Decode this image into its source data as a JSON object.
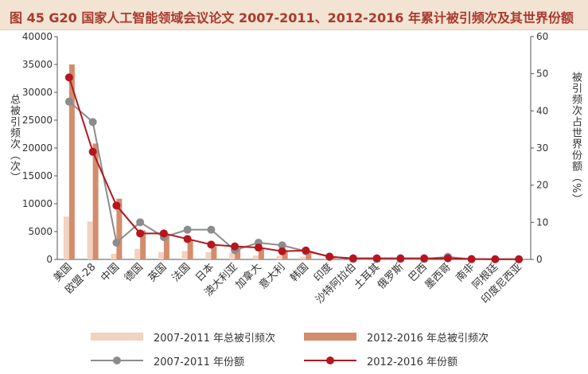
{
  "title": "图 45  G20 国家人工智能领域会议论文 2007-2011、2012-2016 年累计被引频次及其世界份额",
  "chart_data": {
    "type": "bar",
    "categories": [
      "美国",
      "欧盟-28",
      "中国",
      "德国",
      "英国",
      "法国",
      "日本",
      "澳大利亚",
      "加拿大",
      "意大利",
      "韩国",
      "印度",
      "沙特阿拉伯",
      "土耳其",
      "俄罗斯",
      "巴西",
      "墨西哥",
      "南非",
      "阿根廷",
      "印度尼西亚"
    ],
    "series": [
      {
        "name": "2007-2011 年总被引频次",
        "kind": "bar",
        "axis": "left",
        "color": "#f2d2c1",
        "values": [
          7700,
          6800,
          1000,
          1900,
          1300,
          1500,
          1300,
          1200,
          700,
          600,
          500,
          150,
          40,
          40,
          40,
          40,
          30,
          15,
          15,
          10
        ]
      },
      {
        "name": "2012-2016 年总被引频次",
        "kind": "bar",
        "axis": "left",
        "color": "#d28d6e",
        "values": [
          35000,
          20800,
          10900,
          5200,
          4600,
          3500,
          2500,
          2100,
          2000,
          1500,
          1500,
          450,
          250,
          250,
          250,
          250,
          150,
          60,
          40,
          30
        ]
      },
      {
        "name": "2007-2011 年份额",
        "kind": "line",
        "axis": "right",
        "color": "#8c8c8c",
        "values": [
          42.5,
          37,
          4.5,
          10,
          6,
          8,
          8,
          2.5,
          4.5,
          3.8,
          2.2,
          0.8,
          0.1,
          0.1,
          0.1,
          0.1,
          0.7,
          0.05,
          0.05,
          0.05
        ]
      },
      {
        "name": "2012-2016 年份额",
        "kind": "line",
        "axis": "right",
        "color": "#b5161f",
        "values": [
          49,
          29,
          14.5,
          7,
          7,
          5.5,
          4,
          3.5,
          3.2,
          2.2,
          2.4,
          0.7,
          0.3,
          0.3,
          0.3,
          0.3,
          0.3,
          0.1,
          0.05,
          0.05
        ]
      }
    ],
    "ylabel_left": "总被引频次（次）",
    "ylabel_right": "被引频次占世界份额（%）",
    "ylim_left": [
      0,
      40000
    ],
    "ylim_right": [
      0,
      60
    ],
    "yticks_left": [
      "0",
      "5000",
      "10000",
      "15000",
      "20000",
      "25000",
      "30000",
      "35000",
      "40000"
    ],
    "yticks_right": [
      "0",
      "10",
      "20",
      "30",
      "40",
      "50",
      "60"
    ],
    "grid": false,
    "legend": "bottom"
  }
}
